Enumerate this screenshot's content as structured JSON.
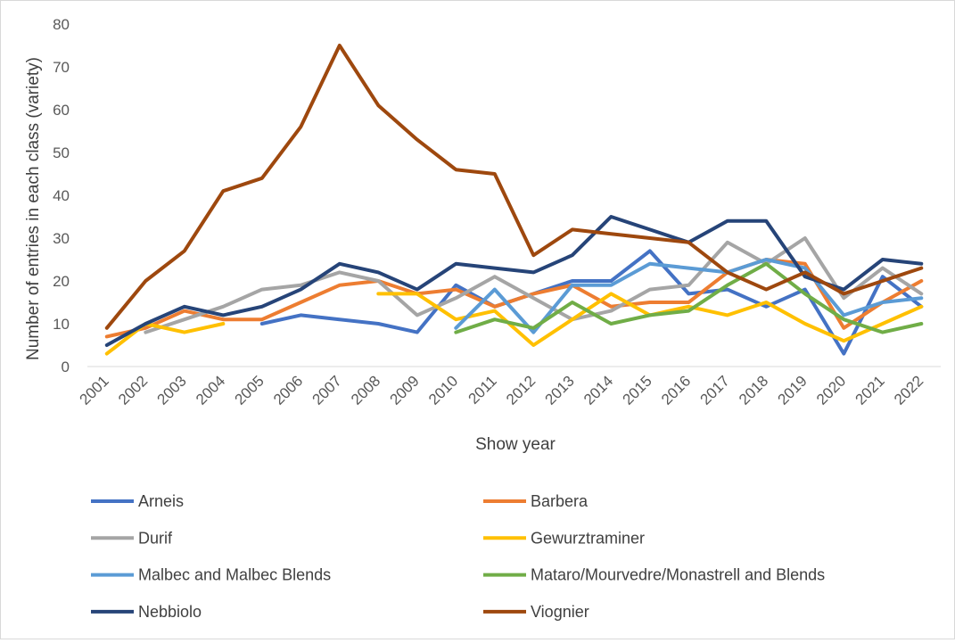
{
  "chart_data": {
    "type": "line",
    "title": "",
    "xlabel": "Show year",
    "ylabel": "Number of entries in each class (variety)",
    "ylim": [
      0,
      80
    ],
    "yticks": [
      0,
      10,
      20,
      30,
      40,
      50,
      60,
      70,
      80
    ],
    "grid": false,
    "legend_position": "bottom",
    "categories": [
      "2001",
      "2002",
      "2003",
      "2004",
      "2005",
      "2006",
      "2007",
      "2008",
      "2009",
      "2010",
      "2011",
      "2012",
      "2013",
      "2014",
      "2015",
      "2016",
      "2017",
      "2018",
      "2019",
      "2020",
      "2021",
      "2022"
    ],
    "series": [
      {
        "name": "Arneis",
        "color": "#4472C4",
        "values": [
          null,
          null,
          null,
          null,
          10,
          12,
          11,
          10,
          8,
          19,
          14,
          17,
          20,
          20,
          27,
          17,
          18,
          14,
          18,
          3,
          21,
          14
        ]
      },
      {
        "name": "Barbera",
        "color": "#ED7D31",
        "values": [
          7,
          9,
          13,
          11,
          11,
          15,
          19,
          20,
          17,
          18,
          14,
          17,
          19,
          14,
          15,
          15,
          22,
          25,
          24,
          9,
          15,
          20
        ]
      },
      {
        "name": "Durif",
        "color": "#A5A5A5",
        "values": [
          null,
          8,
          11,
          14,
          18,
          19,
          22,
          20,
          12,
          16,
          21,
          16,
          11,
          13,
          18,
          19,
          29,
          24,
          30,
          16,
          23,
          17
        ]
      },
      {
        "name": "Gewurztraminer",
        "color": "#FFC000",
        "values": [
          3,
          10,
          8,
          10,
          null,
          null,
          null,
          17,
          17,
          11,
          13,
          5,
          11,
          17,
          12,
          14,
          12,
          15,
          10,
          6,
          10,
          14
        ]
      },
      {
        "name": "Malbec and Malbec Blends",
        "color": "#5B9BD5",
        "values": [
          null,
          null,
          null,
          null,
          null,
          null,
          null,
          null,
          null,
          9,
          18,
          8,
          19,
          19,
          24,
          23,
          22,
          25,
          23,
          12,
          15,
          16
        ]
      },
      {
        "name": "Mataro/Mourvedre/Monastrell and Blends",
        "color": "#70AD47",
        "values": [
          null,
          null,
          null,
          null,
          null,
          null,
          null,
          null,
          null,
          8,
          11,
          9,
          15,
          10,
          12,
          13,
          19,
          24,
          17,
          11,
          8,
          10
        ]
      },
      {
        "name": "Nebbiolo",
        "color": "#264478",
        "values": [
          5,
          10,
          14,
          12,
          14,
          18,
          24,
          22,
          18,
          24,
          23,
          22,
          26,
          35,
          32,
          29,
          34,
          34,
          21,
          18,
          25,
          24
        ]
      },
      {
        "name": "Viognier",
        "color": "#9E480E",
        "values": [
          9,
          20,
          27,
          41,
          44,
          56,
          75,
          61,
          53,
          46,
          45,
          26,
          32,
          31,
          30,
          29,
          22,
          18,
          22,
          17,
          20,
          23
        ]
      }
    ]
  }
}
